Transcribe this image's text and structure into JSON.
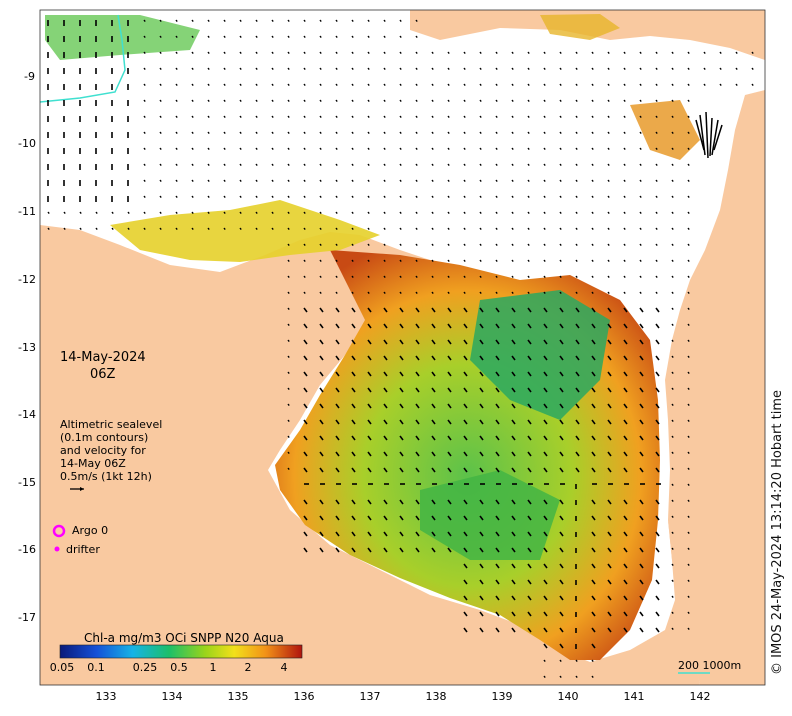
{
  "map": {
    "date_label": "14-May-2024",
    "time_label": "06Z",
    "legend_lines": [
      "Altimetric sealevel",
      "(0.1m contours)",
      "and velocity for",
      "14-May 06Z",
      "0.5m/s (1kt 12h)"
    ],
    "argo_label": "Argo 0",
    "drifter_label": "drifter",
    "colorbar_title": "Chl-a mg/m3 OCi SNPP N20 Aqua",
    "colorbar_ticks": [
      "0.05",
      "0.1",
      "0.25",
      "0.5",
      "1",
      "2",
      "4"
    ],
    "lon_ticks": [
      "133",
      "134",
      "135",
      "136",
      "137",
      "138",
      "139",
      "140",
      "141",
      "142"
    ],
    "lat_ticks": [
      "-9",
      "-10",
      "-11",
      "-12",
      "-13",
      "-14",
      "-15",
      "-16",
      "-17"
    ],
    "scale_label": "200  1000m",
    "credit": "© IMOS 24-May-2024 13:14:20 Hobart time",
    "colors": {
      "land": "#f9c9a0",
      "ocean_nodata": "#ffffff",
      "argo": "#ff00ff",
      "contour": "#40e0d0"
    }
  }
}
